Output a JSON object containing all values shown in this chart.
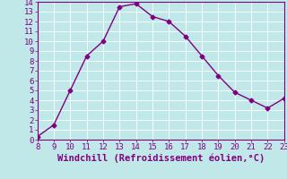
{
  "x": [
    8,
    9,
    10,
    11,
    12,
    13,
    14,
    15,
    16,
    17,
    18,
    19,
    20,
    21,
    22,
    23
  ],
  "y": [
    0.3,
    1.5,
    5.0,
    8.5,
    10.0,
    13.5,
    13.8,
    12.5,
    12.0,
    10.5,
    8.5,
    6.5,
    4.8,
    4.0,
    3.2,
    4.2
  ],
  "xlim": [
    8,
    23
  ],
  "ylim": [
    0,
    14
  ],
  "xticks": [
    8,
    9,
    10,
    11,
    12,
    13,
    14,
    15,
    16,
    17,
    18,
    19,
    20,
    21,
    22,
    23
  ],
  "yticks": [
    0,
    1,
    2,
    3,
    4,
    5,
    6,
    7,
    8,
    9,
    10,
    11,
    12,
    13,
    14
  ],
  "xlabel": "Windchill (Refroidissement éolien,°C)",
  "line_color": "#800080",
  "marker": "D",
  "marker_size": 2.5,
  "bg_color": "#c0e8e8",
  "grid_color": "#ffffff",
  "tick_color": "#800080",
  "label_color": "#800080",
  "font_size": 6.5,
  "xlabel_fontsize": 7.5
}
